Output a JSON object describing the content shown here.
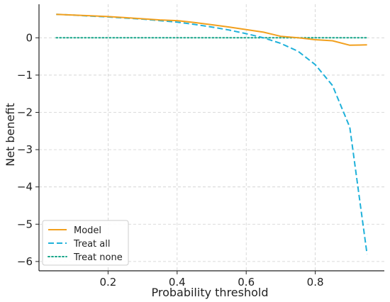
{
  "chart_data": {
    "type": "line",
    "title": "",
    "xlabel": "Probability threshold",
    "ylabel": "Net benefit",
    "xlim": [
      0.0,
      1.0
    ],
    "ylim": [
      -6.25,
      0.9
    ],
    "x_ticks": [
      0.2,
      0.4,
      0.6,
      0.8
    ],
    "x_tick_labels": [
      "0.2",
      "0.4",
      "0.6",
      "0.8"
    ],
    "y_ticks": [
      0,
      -1,
      -2,
      -3,
      -4,
      -5,
      -6
    ],
    "y_tick_labels": [
      "0",
      "−1",
      "−2",
      "−3",
      "−4",
      "−5",
      "−6"
    ],
    "grid": true,
    "legend_position": "lower-left",
    "series": [
      {
        "name": "Model",
        "style": "solid",
        "color": "#F2A01E",
        "x": [
          0.05,
          0.1,
          0.15,
          0.2,
          0.25,
          0.3,
          0.35,
          0.4,
          0.45,
          0.5,
          0.55,
          0.6,
          0.65,
          0.7,
          0.75,
          0.8,
          0.85,
          0.9,
          0.95
        ],
        "y": [
          0.63,
          0.61,
          0.59,
          0.57,
          0.54,
          0.51,
          0.48,
          0.46,
          0.41,
          0.35,
          0.29,
          0.22,
          0.15,
          0.04,
          0.0,
          -0.05,
          -0.08,
          -0.2,
          -0.19
        ]
      },
      {
        "name": "Treat all",
        "style": "dashed",
        "color": "#1FB1DA",
        "x": [
          0.05,
          0.1,
          0.15,
          0.2,
          0.25,
          0.3,
          0.35,
          0.4,
          0.45,
          0.5,
          0.55,
          0.6,
          0.65,
          0.7,
          0.75,
          0.8,
          0.85,
          0.9,
          0.95
        ],
        "y": [
          0.63,
          0.61,
          0.58,
          0.56,
          0.53,
          0.5,
          0.46,
          0.42,
          0.36,
          0.29,
          0.21,
          0.11,
          0.0,
          -0.15,
          -0.36,
          -0.72,
          -1.28,
          -2.4,
          -5.8
        ]
      },
      {
        "name": "Treat none",
        "style": "dotted",
        "color": "#17A589",
        "x": [
          0.05,
          0.95
        ],
        "y": [
          0,
          0
        ]
      }
    ]
  }
}
